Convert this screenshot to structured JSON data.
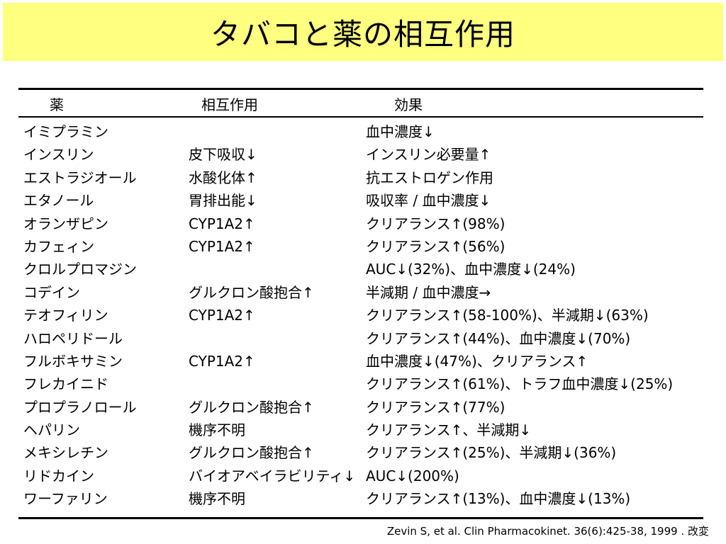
{
  "slide": {
    "title": "タバコと薬の相互作用",
    "title_bg": "#ffff80",
    "source": "Zevin S, et al. Clin Pharmacokinet. 36(6):425-38, 1999 . 改変"
  },
  "table": {
    "headers": {
      "drug": "薬",
      "interaction": "相互作用",
      "effect": "効果"
    },
    "rows": [
      {
        "drug": "イミプラミン",
        "interaction": "",
        "effect": "血中濃度↓"
      },
      {
        "drug": "インスリン",
        "interaction": "皮下吸収↓",
        "effect": "インスリン必要量↑"
      },
      {
        "drug": "エストラジオール",
        "interaction": "水酸化体↑",
        "effect": "抗エストロゲン作用"
      },
      {
        "drug": "エタノール",
        "interaction": "胃排出能↓",
        "effect": "吸収率 / 血中濃度↓"
      },
      {
        "drug": "オランザピン",
        "interaction": "CYP1A2↑",
        "effect": "クリアランス↑(98%)"
      },
      {
        "drug": "カフェィン",
        "interaction": "CYP1A2↑",
        "effect": "クリアランス↑(56%)"
      },
      {
        "drug": "クロルプロマジン",
        "interaction": "",
        "effect": "AUC↓(32%)、血中濃度↓(24%)"
      },
      {
        "drug": "コデイン",
        "interaction": "グルクロン酸抱合↑",
        "effect": "半減期 / 血中濃度→"
      },
      {
        "drug": "テオフィリン",
        "interaction": "CYP1A2↑",
        "effect": "クリアランス↑(58-100%)、半減期↓(63%)"
      },
      {
        "drug": "ハロペリドール",
        "interaction": "",
        "effect": "クリアランス↑(44%)、血中濃度↓(70%)"
      },
      {
        "drug": "フルボキサミン",
        "interaction": "CYP1A2↑",
        "effect": "血中濃度↓(47%)、クリアランス↑"
      },
      {
        "drug": "フレカイニド",
        "interaction": "",
        "effect": "クリアランス↑(61%)、トラフ血中濃度↓(25%)"
      },
      {
        "drug": "プロプラノロール",
        "interaction": "グルクロン酸抱合↑",
        "effect": "クリアランス↑(77%)"
      },
      {
        "drug": "ヘパリン",
        "interaction": "機序不明",
        "effect": "クリアランス↑、半減期↓"
      },
      {
        "drug": "メキシレチン",
        "interaction": "グルクロン酸抱合↑",
        "effect": "クリアランス↑(25%)、半減期↓(36%)"
      },
      {
        "drug": "リドカイン",
        "interaction": "バイオアベイラビリティ↓",
        "effect": "AUC↓(200%)"
      },
      {
        "drug": "ワーファリン",
        "interaction": "機序不明",
        "effect": "クリアランス↑(13%)、血中濃度↓(13%)"
      }
    ]
  }
}
